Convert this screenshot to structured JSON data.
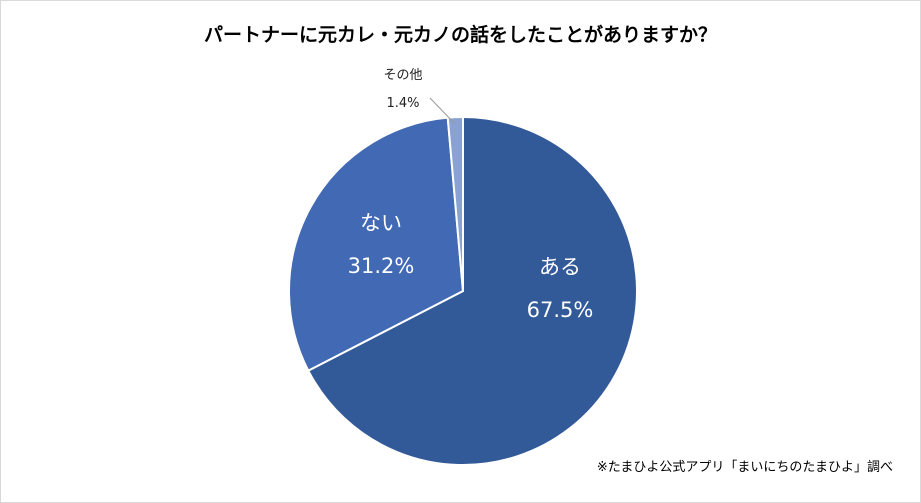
{
  "chart_data": {
    "type": "pie",
    "title": "パートナーに元カレ・元カノの話をしたことがありますか？",
    "slices": [
      {
        "label": "ある",
        "value": 67.5,
        "value_label": "67.5%",
        "color": "#335a98"
      },
      {
        "label": "ない",
        "value": 31.2,
        "value_label": "31.2%",
        "color": "#4169b4"
      },
      {
        "label": "その他",
        "value": 1.4,
        "value_label": "1.4%",
        "color": "#8aa2d2"
      }
    ],
    "start": "top",
    "direction": "clockwise"
  },
  "note": "※たまひよ公式アプリ「まいにちのたまひよ」調べ"
}
